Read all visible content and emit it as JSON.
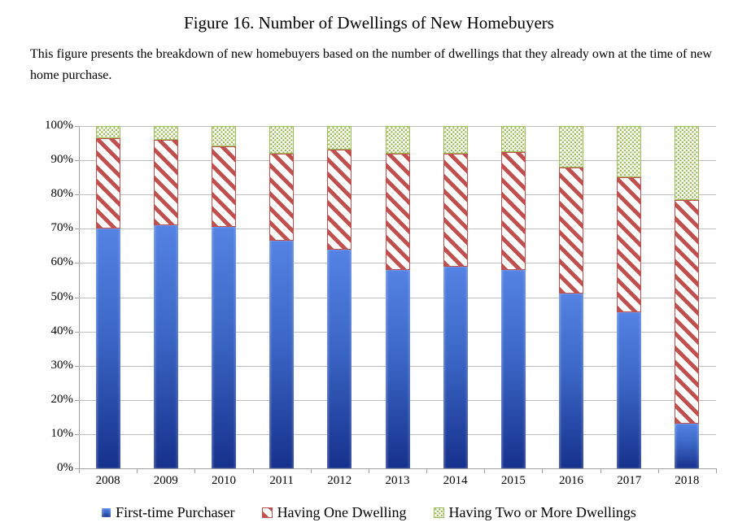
{
  "figure": {
    "title": "Figure 16. Number of Dwellings of New Homebuyers",
    "description": "This figure presents the breakdown of new homebuyers based on the number of dwellings that they already own at the time of new home purchase."
  },
  "chart_data": {
    "type": "bar",
    "stacked": true,
    "units": "percent",
    "categories": [
      "2008",
      "2009",
      "2010",
      "2011",
      "2012",
      "2013",
      "2014",
      "2015",
      "2016",
      "2017",
      "2018"
    ],
    "series": [
      {
        "name": "First-time Purchaser",
        "style": "solid-blue",
        "values": [
          70,
          71,
          70.5,
          66.5,
          64,
          58,
          59,
          58,
          51,
          45.5,
          13
        ]
      },
      {
        "name": "Having One Dwelling",
        "style": "red-diagonal-stripes",
        "values": [
          26.5,
          25,
          23.5,
          25.5,
          29,
          34,
          33,
          34.5,
          37,
          39.5,
          65.5
        ]
      },
      {
        "name": "Having Two or More Dwellings",
        "style": "green-dots",
        "values": [
          3.5,
          4,
          6,
          8,
          7,
          8,
          8,
          7.5,
          12,
          15,
          21.5
        ]
      }
    ],
    "xlabel": "",
    "ylabel": "",
    "ylim": [
      0,
      100
    ],
    "y_tick_labels": [
      "0%",
      "10%",
      "20%",
      "30%",
      "40%",
      "50%",
      "60%",
      "70%",
      "80%",
      "90%",
      "100%"
    ],
    "grid": "horizontal",
    "legend_position": "bottom",
    "colors": {
      "blue_top": "#5583e3",
      "blue_bottom": "#16318c",
      "red": "#c0504d",
      "green": "#9bbb59",
      "gridline": "#bfbfbf",
      "axis": "#9f9f9f",
      "text": "#000000"
    }
  }
}
